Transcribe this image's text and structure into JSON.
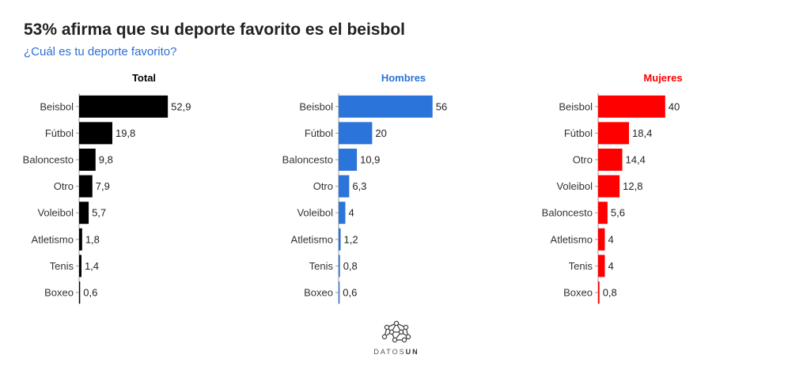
{
  "header": {
    "title": "53% afirma que su deporte favorito es el beisbol",
    "subtitle": "¿Cuál es tu deporte favorito?"
  },
  "brand": {
    "text_a": "DATOS",
    "text_b": "UN",
    "icon": "network-logo-icon"
  },
  "colors": {
    "total": "#000000",
    "hombres": "#2b74d9",
    "mujeres": "#ff0000",
    "axis": "#999999"
  },
  "chart_data": [
    {
      "type": "bar",
      "orientation": "horizontal",
      "title": "Total",
      "color": "#000000",
      "categories": [
        "Beisbol",
        "Fútbol",
        "Baloncesto",
        "Otro",
        "Voleibol",
        "Atletismo",
        "Tenis",
        "Boxeo"
      ],
      "values": [
        52.9,
        19.8,
        9.8,
        7.9,
        5.7,
        1.8,
        1.4,
        0.6
      ],
      "value_labels": [
        "52,9",
        "19,8",
        "9,8",
        "7,9",
        "5,7",
        "1,8",
        "1,4",
        "0,6"
      ],
      "xlim": [
        0,
        100
      ]
    },
    {
      "type": "bar",
      "orientation": "horizontal",
      "title": "Hombres",
      "color": "#2b74d9",
      "categories": [
        "Beisbol",
        "Fútbol",
        "Baloncesto",
        "Otro",
        "Voleibol",
        "Atletismo",
        "Tenis",
        "Boxeo"
      ],
      "values": [
        56,
        20,
        10.9,
        6.3,
        4,
        1.2,
        0.8,
        0.6
      ],
      "value_labels": [
        "56",
        "20",
        "10,9",
        "6,3",
        "4",
        "1,2",
        "0,8",
        "0,6"
      ],
      "xlim": [
        0,
        100
      ]
    },
    {
      "type": "bar",
      "orientation": "horizontal",
      "title": "Mujeres",
      "color": "#ff0000",
      "categories": [
        "Beisbol",
        "Fútbol",
        "Otro",
        "Voleibol",
        "Baloncesto",
        "Atletismo",
        "Tenis",
        "Boxeo"
      ],
      "values": [
        40,
        18.4,
        14.4,
        12.8,
        5.6,
        4,
        4,
        0.8
      ],
      "value_labels": [
        "40",
        "18,4",
        "14,4",
        "12,8",
        "5,6",
        "4",
        "4",
        "0,8"
      ],
      "xlim": [
        0,
        100
      ]
    }
  ]
}
